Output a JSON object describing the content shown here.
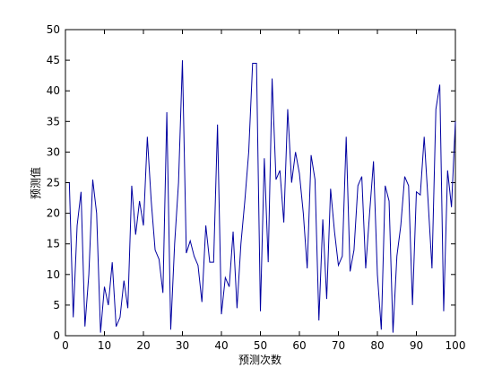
{
  "chart_data": {
    "type": "line",
    "xlabel": "预测次数",
    "ylabel": "预测值",
    "x": [
      1,
      2,
      3,
      4,
      5,
      6,
      7,
      8,
      9,
      10,
      11,
      12,
      13,
      14,
      15,
      16,
      17,
      18,
      19,
      20,
      21,
      22,
      23,
      24,
      25,
      26,
      27,
      28,
      29,
      30,
      31,
      32,
      33,
      34,
      35,
      36,
      37,
      38,
      39,
      40,
      41,
      42,
      43,
      44,
      45,
      46,
      47,
      48,
      49,
      50,
      51,
      52,
      53,
      54,
      55,
      56,
      57,
      58,
      59,
      60,
      61,
      62,
      63,
      64,
      65,
      66,
      67,
      68,
      69,
      70,
      71,
      72,
      73,
      74,
      75,
      76,
      77,
      78,
      79,
      80,
      81,
      82,
      83,
      84,
      85,
      86,
      87,
      88,
      89,
      90,
      91,
      92,
      93,
      94,
      95,
      96,
      97,
      98,
      99,
      100
    ],
    "series": [
      {
        "name": "预测值",
        "color": "#0000a0",
        "values": [
          25,
          3,
          18,
          23.5,
          1.5,
          10,
          25.5,
          20,
          0.5,
          8,
          5,
          12,
          1.5,
          3,
          9,
          4.5,
          24.5,
          16.5,
          22,
          18,
          32.5,
          22,
          14,
          12.5,
          7,
          36.5,
          1,
          15,
          25,
          45,
          13.5,
          15.5,
          13,
          11.5,
          5.5,
          18,
          12,
          12,
          34.5,
          3.5,
          9.5,
          8,
          17,
          4.5,
          15,
          22,
          30,
          44.5,
          44.5,
          4,
          29,
          12,
          42,
          25.5,
          27,
          18.5,
          37,
          25,
          30,
          26.5,
          20,
          11,
          29.5,
          25.5,
          2.5,
          19,
          6,
          24,
          17,
          11.5,
          13,
          32.5,
          10.5,
          14,
          24.5,
          26,
          11,
          20,
          28.5,
          10,
          1,
          24.5,
          22,
          0.5,
          13,
          18,
          26,
          24.5,
          5,
          23.5,
          23,
          32.5,
          22,
          11,
          37,
          41,
          4,
          27,
          21,
          35
        ]
      }
    ],
    "xlim": [
      0,
      100
    ],
    "xticks": [
      0,
      10,
      20,
      30,
      40,
      50,
      60,
      70,
      80,
      90,
      100
    ],
    "ylim": [
      0,
      50
    ],
    "yticks": [
      0,
      5,
      10,
      15,
      20,
      25,
      30,
      35,
      40,
      45,
      50
    ]
  }
}
